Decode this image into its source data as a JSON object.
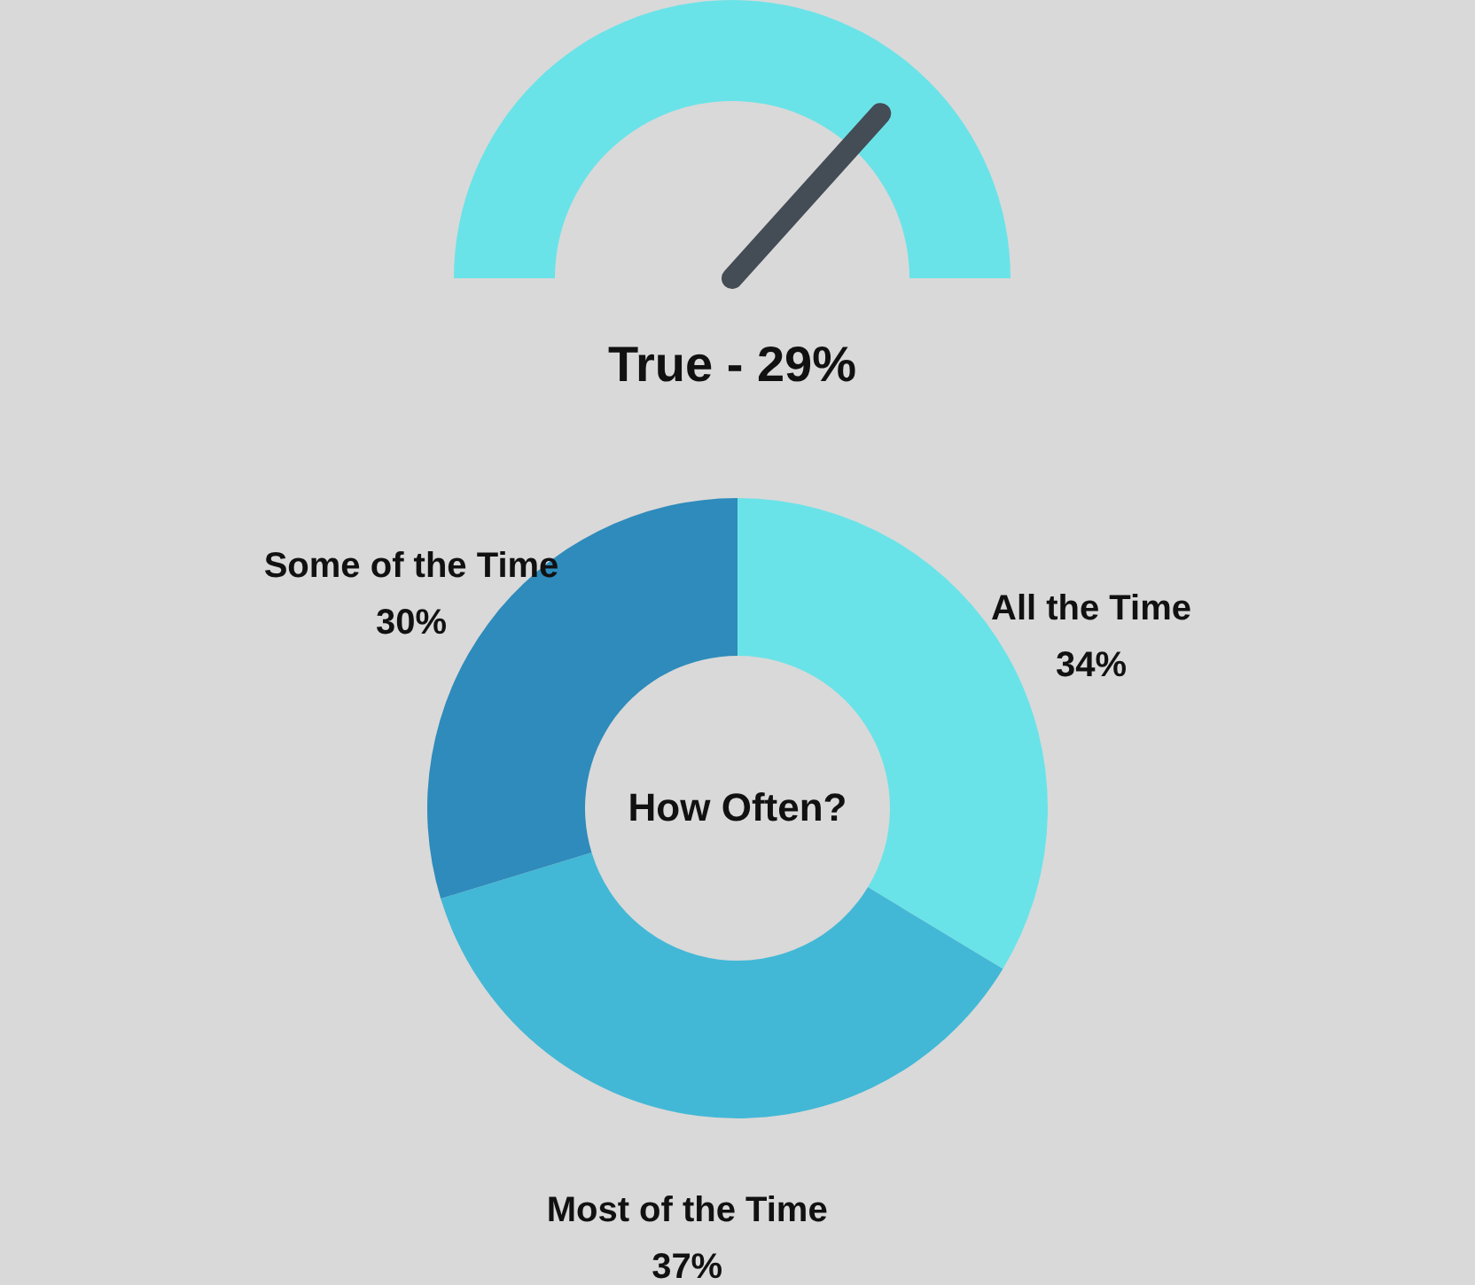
{
  "chart_data": [
    {
      "type": "other",
      "title": "True - 29%"
    },
    {
      "type": "donut",
      "categories": [
        "All the Time",
        "Most of the Time",
        "Some of the Time"
      ],
      "values": [
        34,
        37,
        30
      ],
      "value_labels": [
        "34%",
        "37%",
        "30%"
      ],
      "colors": [
        "#6ae3e8",
        "#42b8d6",
        "#2e8bbb"
      ],
      "annotations": [
        "How Often?"
      ]
    }
  ]
}
